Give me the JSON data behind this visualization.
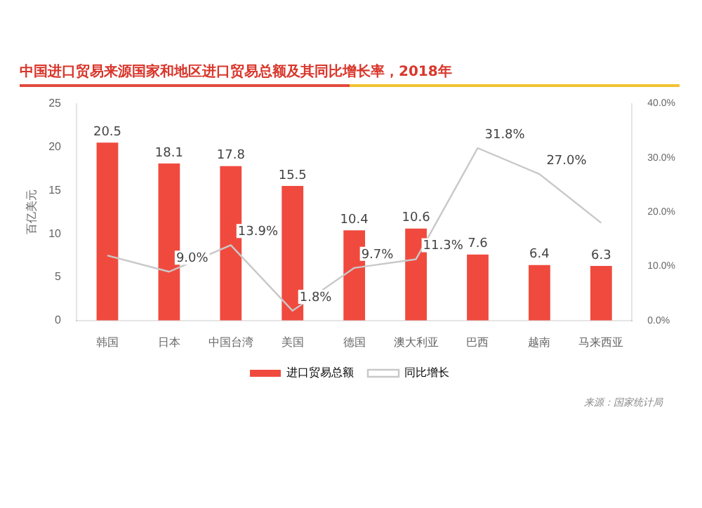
{
  "chart_data": {
    "type": "bar",
    "title": "中国进口贸易来源国家和地区进口贸易总额及其同比增长率，2018年",
    "ylabel": "百亿美元",
    "categories": [
      "韩国",
      "日本",
      "中国台湾",
      "美国",
      "德国",
      "澳大利亚",
      "巴西",
      "越南",
      "马来西亚"
    ],
    "series": [
      {
        "name": "进口贸易总额",
        "color": "#f04a3e",
        "values": [
          20.5,
          18.1,
          17.8,
          15.5,
          10.4,
          10.6,
          7.6,
          6.4,
          6.3
        ],
        "data_labels": true
      },
      {
        "name": "同比增长",
        "type": "line",
        "axis": "y2",
        "color": "#c8c8c8",
        "values": [
          12.0,
          9.0,
          13.9,
          1.8,
          9.7,
          11.3,
          31.8,
          27.0,
          18.0
        ],
        "value_labels": [
          null,
          "9.0%",
          "13.9%",
          "1.8%",
          "9.7%",
          "11.3%",
          "31.8%",
          "27.0%",
          null
        ]
      }
    ],
    "ylim": [
      0,
      25
    ],
    "yticks": [
      0,
      5,
      10,
      15,
      20,
      25
    ],
    "y2lim": [
      0,
      40
    ],
    "y2ticks": [
      {
        "value": 0,
        "label": "0.0%"
      },
      {
        "value": 10,
        "label": "10.0%"
      },
      {
        "value": 20,
        "label": "20.0%"
      },
      {
        "value": 30,
        "label": "30.0%"
      },
      {
        "value": 40,
        "label": "40.0%"
      }
    ],
    "grid": false,
    "legend": "bottom",
    "marker": "none",
    "annotations": [
      "来源：国家统计局"
    ]
  }
}
